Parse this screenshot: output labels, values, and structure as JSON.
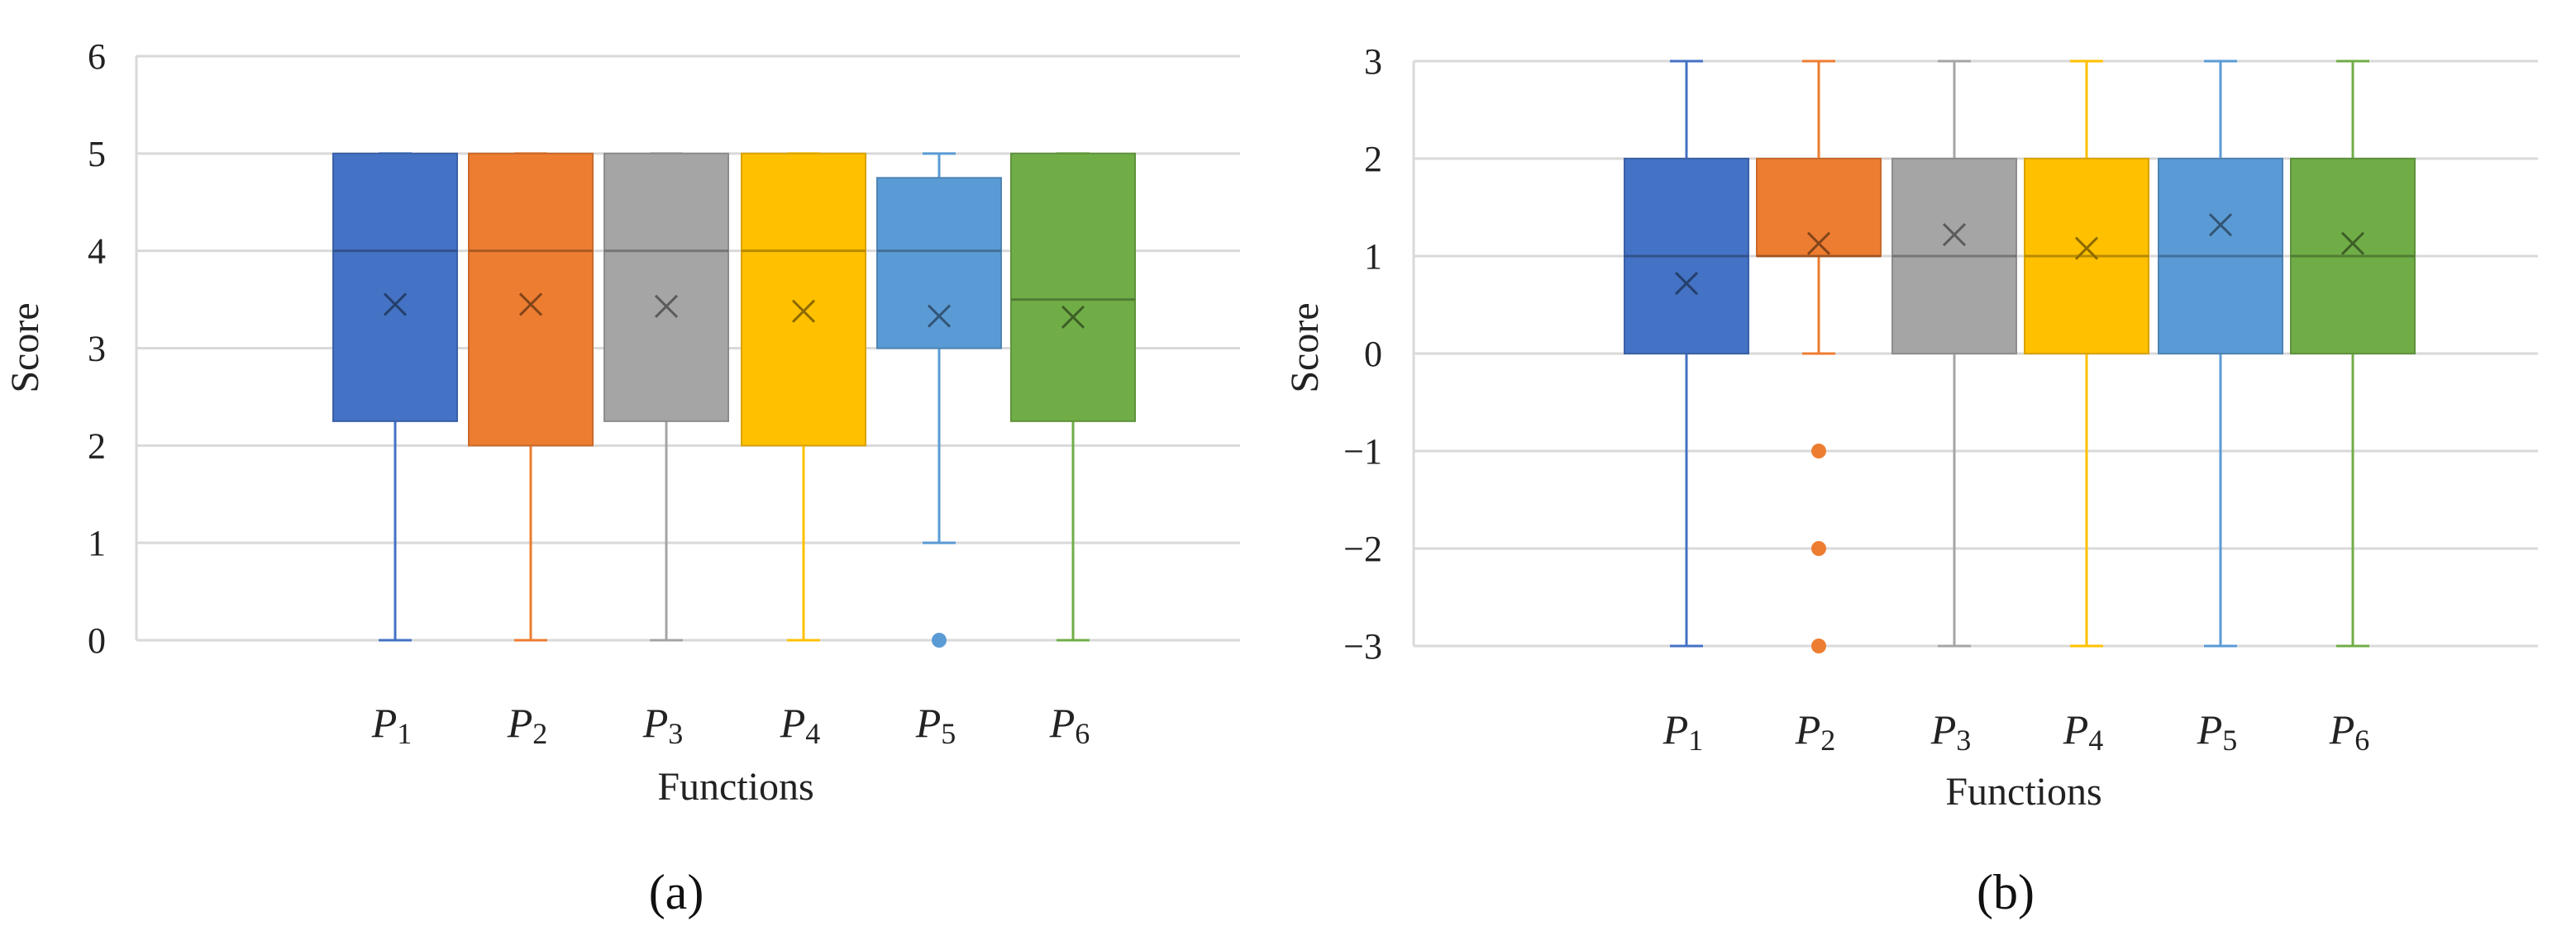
{
  "figure": {
    "panel_labels": [
      "(a)",
      "(b)"
    ]
  },
  "chart_data": [
    {
      "type": "box",
      "panel": "(a)",
      "xlabel": "Functions",
      "ylabel": "Score",
      "ylim": [
        0,
        6
      ],
      "yticks": [
        0,
        1,
        2,
        3,
        4,
        5,
        6
      ],
      "grid": true,
      "categories": [
        {
          "letter": "P",
          "sub": "1"
        },
        {
          "letter": "P",
          "sub": "2"
        },
        {
          "letter": "P",
          "sub": "3"
        },
        {
          "letter": "P",
          "sub": "4"
        },
        {
          "letter": "P",
          "sub": "5"
        },
        {
          "letter": "P",
          "sub": "6"
        }
      ],
      "boxes": [
        {
          "name": "P1",
          "color": "#4472C4",
          "min": 0,
          "q1": 2.25,
          "median": 4.0,
          "q3": 5.0,
          "max": 5.0,
          "mean": 3.45,
          "outliers": []
        },
        {
          "name": "P2",
          "color": "#ED7D31",
          "min": 0,
          "q1": 2.0,
          "median": 4.0,
          "q3": 5.0,
          "max": 5.0,
          "mean": 3.45,
          "outliers": []
        },
        {
          "name": "P3",
          "color": "#A5A5A5",
          "min": 0,
          "q1": 2.25,
          "median": 4.0,
          "q3": 5.0,
          "max": 5.0,
          "mean": 3.43,
          "outliers": []
        },
        {
          "name": "P4",
          "color": "#FFC000",
          "min": 0,
          "q1": 2.0,
          "median": 4.0,
          "q3": 5.0,
          "max": 5.0,
          "mean": 3.38,
          "outliers": []
        },
        {
          "name": "P5",
          "color": "#5B9BD5",
          "min": 1,
          "q1": 3.0,
          "median": 4.0,
          "q3": 4.75,
          "max": 5.0,
          "mean": 3.33,
          "outliers": [
            0
          ]
        },
        {
          "name": "P6",
          "color": "#70AD47",
          "min": 0,
          "q1": 2.25,
          "median": 3.5,
          "q3": 5.0,
          "max": 5.0,
          "mean": 3.32,
          "outliers": []
        }
      ]
    },
    {
      "type": "box",
      "panel": "(b)",
      "xlabel": "Functions",
      "ylabel": "Score",
      "ylim": [
        -3,
        3
      ],
      "yticks": [
        3,
        2,
        1,
        0,
        -1,
        -2,
        -3
      ],
      "ytick_labels": [
        "3",
        "2",
        "1",
        "0",
        "−1",
        "−2",
        "−3"
      ],
      "grid": true,
      "categories": [
        {
          "letter": "P",
          "sub": "1"
        },
        {
          "letter": "P",
          "sub": "2"
        },
        {
          "letter": "P",
          "sub": "3"
        },
        {
          "letter": "P",
          "sub": "4"
        },
        {
          "letter": "P",
          "sub": "5"
        },
        {
          "letter": "P",
          "sub": "6"
        }
      ],
      "boxes": [
        {
          "name": "P1",
          "color": "#4472C4",
          "min": -3,
          "q1": 0,
          "median": 1,
          "q3": 2,
          "max": 3,
          "mean": 0.72,
          "outliers": []
        },
        {
          "name": "P2",
          "color": "#ED7D31",
          "min": 0,
          "q1": 1,
          "median": 1,
          "q3": 2,
          "max": 3,
          "mean": 1.13,
          "outliers": [
            -1,
            -2,
            -3
          ]
        },
        {
          "name": "P3",
          "color": "#A5A5A5",
          "min": -3,
          "q1": 0,
          "median": 1,
          "q3": 2,
          "max": 3,
          "mean": 1.22,
          "outliers": []
        },
        {
          "name": "P4",
          "color": "#FFC000",
          "min": -3,
          "q1": 0,
          "median": 1,
          "q3": 2,
          "max": 3,
          "mean": 1.08,
          "outliers": []
        },
        {
          "name": "P5",
          "color": "#5B9BD5",
          "min": -3,
          "q1": 0,
          "median": 1,
          "q3": 2,
          "max": 3,
          "mean": 1.32,
          "outliers": []
        },
        {
          "name": "P6",
          "color": "#70AD47",
          "min": -3,
          "q1": 0,
          "median": 1,
          "q3": 2,
          "max": 3,
          "mean": 1.13,
          "outliers": []
        }
      ]
    }
  ]
}
